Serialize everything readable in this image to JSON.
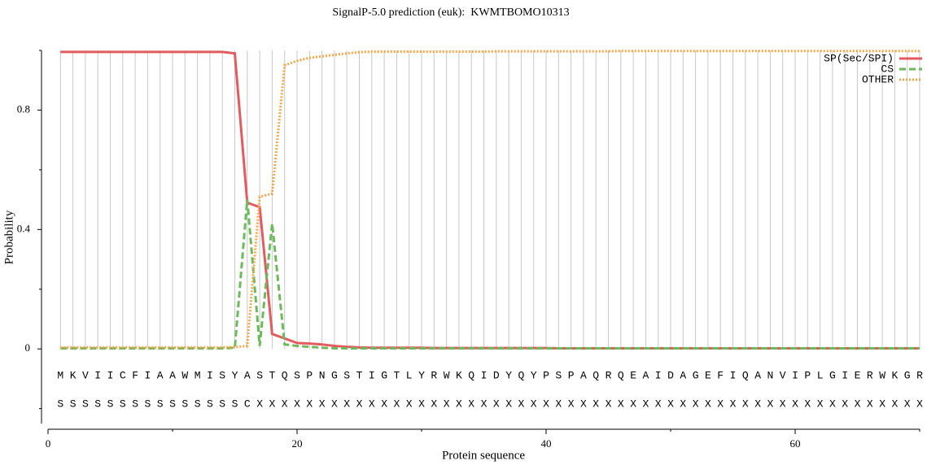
{
  "chart_data": {
    "type": "line",
    "title": "SignalP-5.0 prediction (euk):  KWMTBOMO10313",
    "x_label": "Protein sequence",
    "y_label": "Probability",
    "x": [
      1,
      2,
      3,
      4,
      5,
      6,
      7,
      8,
      9,
      10,
      11,
      12,
      13,
      14,
      15,
      16,
      17,
      18,
      19,
      20,
      21,
      22,
      23,
      24,
      25,
      26,
      27,
      28,
      29,
      30,
      31,
      32,
      33,
      34,
      35,
      36,
      37,
      38,
      39,
      40,
      41,
      42,
      43,
      44,
      45,
      46,
      47,
      48,
      49,
      50,
      51,
      52,
      53,
      54,
      55,
      56,
      57,
      58,
      59,
      60,
      61,
      62,
      63,
      64,
      65,
      66,
      67,
      68,
      69,
      70
    ],
    "sequence": [
      "M",
      "K",
      "V",
      "I",
      "I",
      "C",
      "F",
      "I",
      "A",
      "A",
      "W",
      "M",
      "I",
      "S",
      "Y",
      "A",
      "S",
      "T",
      "Q",
      "S",
      "P",
      "N",
      "G",
      "S",
      "T",
      "I",
      "G",
      "T",
      "L",
      "Y",
      "R",
      "W",
      "K",
      "Q",
      "I",
      "D",
      "Y",
      "Q",
      "Y",
      "P",
      "S",
      "P",
      "A",
      "Q",
      "R",
      "Q",
      "E",
      "A",
      "I",
      "D",
      "A",
      "G",
      "E",
      "F",
      "I",
      "Q",
      "A",
      "N",
      "V",
      "I",
      "P",
      "L",
      "G",
      "I",
      "E",
      "R",
      "W",
      "K",
      "G",
      "R"
    ],
    "prediction": [
      "S",
      "S",
      "S",
      "S",
      "S",
      "S",
      "S",
      "S",
      "S",
      "S",
      "S",
      "S",
      "S",
      "S",
      "S",
      "C",
      "X",
      "X",
      "X",
      "X",
      "X",
      "X",
      "X",
      "X",
      "X",
      "X",
      "X",
      "X",
      "X",
      "X",
      "X",
      "X",
      "X",
      "X",
      "X",
      "X",
      "X",
      "X",
      "X",
      "X",
      "X",
      "X",
      "X",
      "X",
      "X",
      "X",
      "X",
      "X",
      "X",
      "X",
      "X",
      "X",
      "X",
      "X",
      "X",
      "X",
      "X",
      "X",
      "X",
      "X",
      "X",
      "X",
      "X",
      "X",
      "X",
      "X",
      "X",
      "X",
      "X",
      "X"
    ],
    "series": [
      {
        "name": "SP(Sec/SPI)",
        "color": "#e45b5f",
        "style": "solid",
        "values": [
          0.995,
          0.995,
          0.995,
          0.995,
          0.995,
          0.995,
          0.995,
          0.995,
          0.995,
          0.995,
          0.995,
          0.995,
          0.995,
          0.995,
          0.99,
          0.49,
          0.475,
          0.05,
          0.035,
          0.02,
          0.018,
          0.015,
          0.01,
          0.007,
          0.005,
          0.004,
          0.004,
          0.004,
          0.004,
          0.004,
          0.003,
          0.003,
          0.003,
          0.003,
          0.003,
          0.003,
          0.003,
          0.003,
          0.003,
          0.003,
          0.002,
          0.002,
          0.002,
          0.002,
          0.002,
          0.002,
          0.002,
          0.002,
          0.002,
          0.002,
          0.002,
          0.002,
          0.002,
          0.002,
          0.002,
          0.002,
          0.002,
          0.002,
          0.002,
          0.002,
          0.002,
          0.002,
          0.002,
          0.002,
          0.002,
          0.002,
          0.002,
          0.002,
          0.002,
          0.002
        ]
      },
      {
        "name": "CS",
        "color": "#6dba5c",
        "style": "dashed",
        "values": [
          0.002,
          0.002,
          0.002,
          0.002,
          0.002,
          0.002,
          0.002,
          0.002,
          0.002,
          0.002,
          0.002,
          0.002,
          0.002,
          0.002,
          0.004,
          0.5,
          0.01,
          0.42,
          0.015,
          0.01,
          0.007,
          0.004,
          0.002,
          0.002,
          0.002,
          0.002,
          0.002,
          0.002,
          0.002,
          0.002,
          0.002,
          0.002,
          0.002,
          0.002,
          0.002,
          0.002,
          0.002,
          0.002,
          0.002,
          0.002,
          0.002,
          0.002,
          0.002,
          0.002,
          0.002,
          0.002,
          0.002,
          0.002,
          0.002,
          0.002,
          0.002,
          0.002,
          0.002,
          0.002,
          0.002,
          0.002,
          0.002,
          0.002,
          0.002,
          0.002,
          0.002,
          0.002,
          0.002,
          0.002,
          0.002,
          0.002,
          0.002,
          0.002,
          0.002,
          0.002
        ]
      },
      {
        "name": "OTHER",
        "color": "#f5a548",
        "style": "dotted",
        "values": [
          0.005,
          0.005,
          0.005,
          0.005,
          0.005,
          0.005,
          0.005,
          0.005,
          0.005,
          0.005,
          0.005,
          0.005,
          0.005,
          0.005,
          0.006,
          0.01,
          0.51,
          0.52,
          0.95,
          0.965,
          0.975,
          0.98,
          0.985,
          0.99,
          0.994,
          0.996,
          0.996,
          0.996,
          0.996,
          0.996,
          0.996,
          0.996,
          0.996,
          0.996,
          0.996,
          0.997,
          0.997,
          0.997,
          0.997,
          0.997,
          0.997,
          0.997,
          0.997,
          0.997,
          0.997,
          0.998,
          0.998,
          0.998,
          0.998,
          0.998,
          0.998,
          0.998,
          0.998,
          0.998,
          0.998,
          0.998,
          0.998,
          0.998,
          0.998,
          0.998,
          0.998,
          0.998,
          0.998,
          0.998,
          0.998,
          0.998,
          0.998,
          0.998,
          0.998,
          0.998
        ]
      }
    ],
    "xlim": [
      0,
      70
    ],
    "xticks": [
      0,
      20,
      40,
      60
    ],
    "xminor_ticks": [
      10,
      30,
      50,
      70
    ],
    "ylim": [
      -0.25,
      1
    ],
    "yticks": [
      0,
      0.4,
      0.8
    ],
    "yminor_ticks": [
      -0.2,
      0.2,
      0.6,
      1
    ],
    "grid": true,
    "legend": "upper right"
  }
}
